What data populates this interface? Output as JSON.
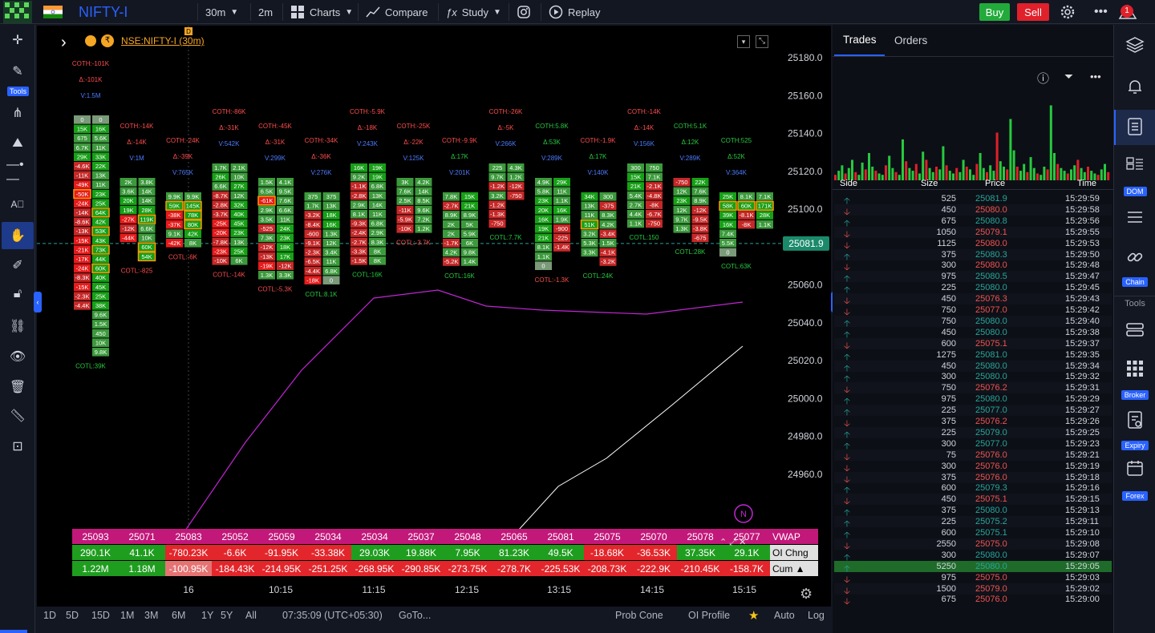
{
  "header": {
    "symbol": "NIFTY-I",
    "interval": "30m",
    "timeframe": "2m",
    "charts": "Charts",
    "compare": "Compare",
    "study": "Study",
    "replay": "Replay",
    "buy": "Buy",
    "sell": "Sell",
    "notif_count": "1"
  },
  "left_tools": {
    "tools_label": "Tools"
  },
  "chart": {
    "legend": "NSE:NIFTY-I (30m)",
    "price_labels": [
      "25180.0",
      "25160.0",
      "25140.0",
      "25120.0",
      "25100.0",
      "25080.0",
      "25060.0",
      "25040.0",
      "25020.0",
      "25000.0",
      "24980.0",
      "24960.0"
    ],
    "current_price": "25081.9",
    "time_labels": [
      "16",
      "10:15",
      "11:15",
      "12:15",
      "13:15",
      "14:15",
      "15:15"
    ],
    "n_badge": "N",
    "d_badge": "D"
  },
  "chart_data": {
    "type": "table",
    "candles": [
      {
        "top": [
          "COTH:-101K",
          "Δ:-101K",
          "V:1.5M"
        ],
        "bottom": "COTL:39K",
        "hi": "0",
        "lo": "-4.4K",
        "cols": [
          [
            "0",
            "15K",
            "675",
            "6.7K",
            "29K",
            "-4.6K",
            "-11K",
            "-49K",
            "-50K",
            "-24K",
            "-14K",
            "-8.6K",
            "-13K",
            "-15K",
            "-21K",
            "-17K",
            "-24K",
            "-8.3K",
            "-15K",
            "-2.3K",
            "-4.4K"
          ],
          [
            "0",
            "16K",
            "5.6K",
            "11K",
            "33K",
            "22K",
            "13K",
            "11K",
            "23K",
            "25K",
            "64K",
            "42K",
            "53K",
            "43K",
            "73K",
            "44K",
            "60K",
            "40K",
            "45K",
            "25K",
            "38K",
            "9.6K",
            "1.5K",
            "450",
            "10K",
            "9.8K"
          ]
        ]
      },
      {
        "top": [
          "COTH:-14K",
          "Δ:-14K",
          "V:1M"
        ],
        "bottom": "COTL:-825",
        "hi": "2K",
        "lo": "-44K",
        "cols": [
          [
            "2K",
            "3.6K",
            "20K",
            "19K",
            "-27K",
            "-12K",
            "-44K"
          ],
          [
            "3.8K",
            "14K",
            "14K",
            "28K",
            "119K",
            "6.6K",
            "10K",
            "60K",
            "54K"
          ]
        ]
      },
      {
        "top": [
          "COTH:-24K",
          "Δ:-39K",
          "V:765K"
        ],
        "bottom": "COTL:-6K",
        "hi": "9.9K",
        "lo": "-42K",
        "cols": [
          [
            "9.9K",
            "59K",
            "-38K",
            "-37K",
            "9.1K",
            "-42K"
          ],
          [
            "9.9K",
            "145K",
            "78K",
            "80K",
            "42K",
            "8K"
          ]
        ]
      },
      {
        "top": [
          "COTH:-86K",
          "Δ:-31K",
          "V:542K"
        ],
        "bottom": "COTL:-14K",
        "hi": "3.8K",
        "lo": "-10K",
        "cols": [
          [
            "1.7K",
            "26K",
            "6.6K",
            "-8.7K",
            "-2.8K",
            "-3.7K",
            "-25K",
            "-20K",
            "-7.8K",
            "-23K",
            "-10K"
          ],
          [
            "2.1K",
            "10K",
            "27K",
            "12K",
            "32K",
            "40K",
            "45K",
            "23K",
            "13K",
            "25K",
            "6K"
          ]
        ]
      },
      {
        "top": [
          "COTH:-45K",
          "Δ:-31K",
          "V:299K"
        ],
        "bottom": "COTL:-5.3K",
        "hi": "1.5K",
        "lo": "-19K",
        "cols": [
          [
            "1.5K",
            "6.5K",
            "-61K",
            "2.9K",
            "3.5K",
            "-525",
            "7.3K",
            "-12K",
            "-13K",
            "-19K",
            "1.3K"
          ],
          [
            "4.1K",
            "9.5K",
            "7.6K",
            "6.6K",
            "11K",
            "24K",
            "23K",
            "18K",
            "17K",
            "-12K",
            "3.3K"
          ]
        ]
      },
      {
        "top": [
          "COTH:-34K",
          "Δ:-36K",
          "V:276K"
        ],
        "bottom": "COTL:8.1K",
        "hi": "375",
        "lo": "-18K",
        "cols": [
          [
            "375",
            "1.7K",
            "-3.2K",
            "-8.4K",
            "-600",
            "-9.1K",
            "-2.3K",
            "-6.5K",
            "-4.4K",
            "-18K"
          ],
          [
            "375",
            "13K",
            "18K",
            "16K",
            "1.3K",
            "12K",
            "3.4K",
            "11K",
            "6.8K",
            "0"
          ]
        ]
      },
      {
        "top": [
          "COTH:-5.9K",
          "Δ:-18K",
          "V:243K"
        ],
        "bottom": "COTL:16K",
        "hi": "16K",
        "lo": "-1.5K",
        "cols": [
          [
            "16K",
            "9.2K",
            "-1.1K",
            "-2.8K",
            "2.9K",
            "8.1K",
            "-9.3K",
            "-2.4K",
            "-2.7K",
            "-3.3K",
            "-1.5K"
          ],
          [
            "19K",
            "19K",
            "6.8K",
            "13K",
            "14K",
            "11K",
            "6.8K",
            "2.9K",
            "8.3K",
            "8K",
            "8K"
          ]
        ]
      },
      {
        "top": [
          "COTH:-25K",
          "Δ:-22K",
          "V:125K"
        ],
        "bottom": "COTL:-3.7K",
        "hi": "3K",
        "lo": "-10K",
        "cols": [
          [
            "3K",
            "7.6K",
            "2.5K",
            "-11K",
            "-5.9K",
            "-10K"
          ],
          [
            "4.2K",
            "14K",
            "8.5K",
            "9.6K",
            "7.2K",
            "1.2K"
          ]
        ]
      },
      {
        "top": [
          "COTH:-9.9K",
          "Δ:17K",
          "V:201K"
        ],
        "bottom": "COTL:16K",
        "hi": "7.8K",
        "lo": "-5.2K",
        "cols": [
          [
            "7.8K",
            "-2.7K",
            "8.9K",
            "2K",
            "2K",
            "-1.7K",
            "4.2K",
            "-5.2K"
          ],
          [
            "15K",
            "21K",
            "8.9K",
            "5K",
            "5.9K",
            "6K",
            "9.8K",
            "1.4K"
          ]
        ]
      },
      {
        "top": [
          "COTH:-26K",
          "Δ:-5K",
          "V:266K"
        ],
        "bottom": "COTL:7.7K",
        "hi": "225",
        "lo": "-750",
        "cols": [
          [
            "225",
            "9.7K",
            "-1.2K",
            "3.2K",
            "-1.2K",
            "-1.3K",
            "-750"
          ],
          [
            "4.3K",
            "1.2K",
            "-12K",
            "-750"
          ]
        ]
      },
      {
        "top": [
          "COTH:5.8K",
          "Δ:53K",
          "V:289K"
        ],
        "bottom": "COTL:-1.3K",
        "hi": "29K",
        "lo": "0",
        "cols": [
          [
            "4.9K",
            "5.8K",
            "23K",
            "20K",
            "16K",
            "19K",
            "21K",
            "8.1K",
            "1.1K",
            "0"
          ],
          [
            "29K",
            "11K",
            "1.1K",
            "16K",
            "1.9K",
            "-900",
            "-225",
            "-1.4K"
          ]
        ]
      },
      {
        "top": [
          "COTH:-1.9K",
          "Δ:17K",
          "V:140K"
        ],
        "bottom": "COTL:24K",
        "hi": "34K",
        "lo": "-3.2K",
        "cols": [
          [
            "34K",
            "13K",
            "11K",
            "51K",
            "3.2K",
            "5.3K",
            "3.3K"
          ],
          [
            "300",
            "-375",
            "8.3K",
            "4.2K",
            "-3.4K",
            "1.5K",
            "-4.1K",
            "-3.2K"
          ]
        ]
      },
      {
        "top": [
          "COTH:-14K",
          "Δ:-14K",
          "V:156K"
        ],
        "bottom": "COTL:150",
        "hi": "750",
        "lo": "-750",
        "cols": [
          [
            "300",
            "15K",
            "21K",
            "5.4K",
            "2.7K",
            "4.4K",
            "1.1K"
          ],
          [
            "750",
            "7.1K",
            "-2.1K",
            "-4.8K",
            "-8K",
            "-6.7K",
            "-750"
          ]
        ]
      },
      {
        "top": [
          "COTH:5.1K",
          "Δ:12K",
          "V:289K"
        ],
        "bottom": "COTL:28K",
        "hi": "22K",
        "lo": "675",
        "cols": [
          [
            "-750",
            "12K",
            "23K",
            "12K",
            "9.7K",
            "1.3K"
          ],
          [
            "22K",
            "7.6K",
            "8.9K",
            "-12K",
            "-9.5K",
            "-3.8K",
            "-675"
          ]
        ]
      },
      {
        "top": [
          "COTH:525",
          "Δ:52K",
          "V:364K"
        ],
        "bottom": "COTL:63K",
        "hi": "25K",
        "lo": "0",
        "cols": [
          [
            "25K",
            "58K",
            "39K",
            "16K",
            "7.4K",
            "5.5K",
            "0"
          ],
          [
            "8.1K",
            "60K",
            "-8.1K",
            "-8K"
          ],
          [
            "7.1K",
            "171K",
            "28K",
            "1.1K"
          ]
        ]
      }
    ],
    "oi_table": {
      "rows": [
        {
          "label": "VWAP",
          "values": [
            "25093",
            "25071",
            "25083",
            "25052",
            "25059",
            "25034",
            "25034",
            "25037",
            "25048",
            "25065",
            "25081",
            "25075",
            "25070",
            "25078",
            "25077"
          ]
        },
        {
          "label": "OI Chng",
          "values": [
            "290.1K",
            "41.1K",
            "-780.23K",
            "-6.6K",
            "-91.95K",
            "-33.38K",
            "29.03K",
            "19.88K",
            "7.95K",
            "81.23K",
            "49.5K",
            "-18.68K",
            "-36.53K",
            "37.35K",
            "29.1K"
          ]
        },
        {
          "label": "Cum ▲",
          "values": [
            "1.22M",
            "1.18M",
            "-100.95K",
            "-184.43K",
            "-214.95K",
            "-251.25K",
            "-268.95K",
            "-290.85K",
            "-273.75K",
            "-278.7K",
            "-225.53K",
            "-208.73K",
            "-222.9K",
            "-210.45K",
            "-158.7K"
          ]
        }
      ]
    }
  },
  "bottom": {
    "ranges": [
      "1D",
      "5D",
      "15D",
      "1M",
      "3M",
      "6M",
      "1Y",
      "5Y",
      "All"
    ],
    "clock": "07:35:09 (UTC+05:30)",
    "goto": "GoTo...",
    "prob_cone": "Prob Cone",
    "oi_profile": "OI Profile",
    "auto": "Auto",
    "log": "Log"
  },
  "trades": {
    "tab_trades": "Trades",
    "tab_orders": "Orders",
    "col_side": "Side",
    "col_size": "Size",
    "col_price": "Price",
    "col_time": "Time",
    "rows": [
      {
        "side": "up",
        "size": "525",
        "price": "25081.9",
        "time": "15:29:59"
      },
      {
        "side": "down",
        "size": "450",
        "price": "25080.0",
        "time": "15:29:58"
      },
      {
        "side": "up",
        "size": "675",
        "price": "25080.8",
        "time": "15:29:56"
      },
      {
        "side": "down",
        "size": "1050",
        "price": "25079.1",
        "time": "15:29:55"
      },
      {
        "side": "down",
        "size": "1125",
        "price": "25080.0",
        "time": "15:29:53"
      },
      {
        "side": "up",
        "size": "375",
        "price": "25080.3",
        "time": "15:29:50"
      },
      {
        "side": "down",
        "size": "300",
        "price": "25080.0",
        "time": "15:29:48"
      },
      {
        "side": "up",
        "size": "975",
        "price": "25080.5",
        "time": "15:29:47"
      },
      {
        "side": "up",
        "size": "225",
        "price": "25080.0",
        "time": "15:29:45"
      },
      {
        "side": "down",
        "size": "450",
        "price": "25076.3",
        "time": "15:29:43"
      },
      {
        "side": "down",
        "size": "750",
        "price": "25077.0",
        "time": "15:29:42"
      },
      {
        "side": "up",
        "size": "750",
        "price": "25080.0",
        "time": "15:29:40"
      },
      {
        "side": "up",
        "size": "450",
        "price": "25080.0",
        "time": "15:29:38"
      },
      {
        "side": "down",
        "size": "600",
        "price": "25075.1",
        "time": "15:29:37"
      },
      {
        "side": "up",
        "size": "1275",
        "price": "25081.0",
        "time": "15:29:35"
      },
      {
        "side": "up",
        "size": "450",
        "price": "25080.0",
        "time": "15:29:34"
      },
      {
        "side": "up",
        "size": "300",
        "price": "25080.0",
        "time": "15:29:32"
      },
      {
        "side": "down",
        "size": "750",
        "price": "25076.2",
        "time": "15:29:31"
      },
      {
        "side": "up",
        "size": "975",
        "price": "25080.0",
        "time": "15:29:29"
      },
      {
        "side": "up",
        "size": "225",
        "price": "25077.0",
        "time": "15:29:27"
      },
      {
        "side": "down",
        "size": "375",
        "price": "25076.2",
        "time": "15:29:26"
      },
      {
        "side": "up",
        "size": "225",
        "price": "25079.0",
        "time": "15:29:25"
      },
      {
        "side": "up",
        "size": "300",
        "price": "25077.0",
        "time": "15:29:23"
      },
      {
        "side": "down",
        "size": "75",
        "price": "25076.0",
        "time": "15:29:21"
      },
      {
        "side": "down",
        "size": "300",
        "price": "25076.0",
        "time": "15:29:19"
      },
      {
        "side": "down",
        "size": "375",
        "price": "25076.0",
        "time": "15:29:18"
      },
      {
        "side": "up",
        "size": "600",
        "price": "25079.3",
        "time": "15:29:16"
      },
      {
        "side": "down",
        "size": "450",
        "price": "25075.1",
        "time": "15:29:15"
      },
      {
        "side": "up",
        "size": "375",
        "price": "25080.0",
        "time": "15:29:13"
      },
      {
        "side": "up",
        "size": "225",
        "price": "25075.2",
        "time": "15:29:11"
      },
      {
        "side": "up",
        "size": "600",
        "price": "25075.1",
        "time": "15:29:10"
      },
      {
        "side": "down",
        "size": "2550",
        "price": "25075.0",
        "time": "15:29:08"
      },
      {
        "side": "up",
        "size": "300",
        "price": "25080.0",
        "time": "15:29:07"
      },
      {
        "side": "up",
        "size": "5250",
        "price": "25080.0",
        "time": "15:29:05"
      },
      {
        "side": "down",
        "size": "975",
        "price": "25075.0",
        "time": "15:29:03"
      },
      {
        "side": "down",
        "size": "1500",
        "price": "25079.0",
        "time": "15:29:02"
      },
      {
        "side": "down",
        "size": "675",
        "price": "25076.0",
        "time": "15:29:00"
      }
    ]
  },
  "right_tools": {
    "dom": "DOM",
    "chain": "Chain",
    "tools": "Tools",
    "broker": "Broker",
    "expiry": "Expiry",
    "forex": "Forex"
  },
  "colors": {
    "green": "#26a69a",
    "red": "#ef5350",
    "cell_green": "#1e8e1e",
    "cell_red": "#d61f1f",
    "accent": "#2962ff",
    "vwap": "#c2187a"
  }
}
